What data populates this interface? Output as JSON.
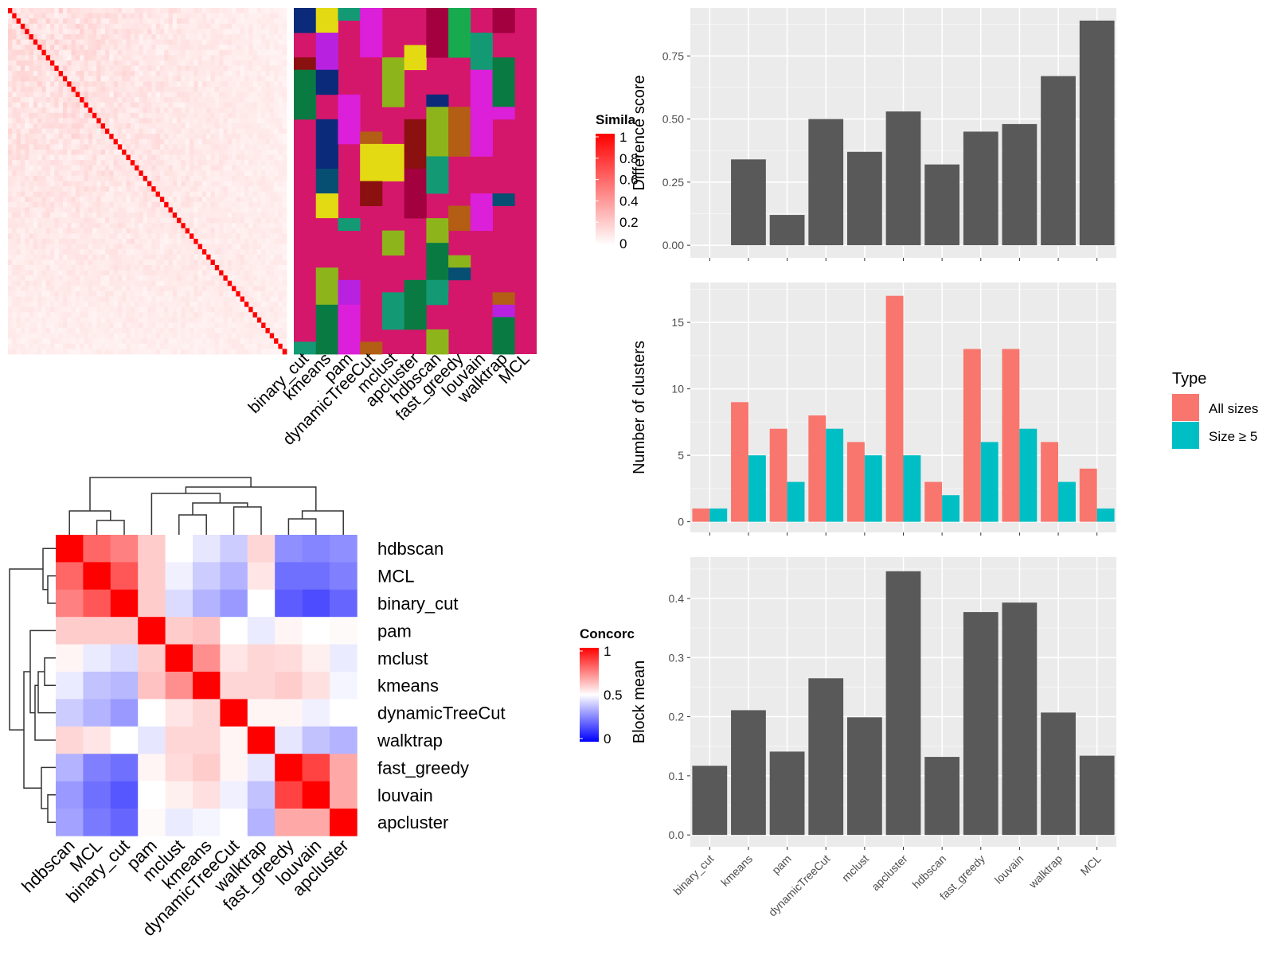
{
  "chart_data": [
    {
      "type": "heatmap",
      "legend_title": "Simila",
      "legend_ticks": [
        "1",
        "0.8",
        "0.6",
        "0.4",
        "0.2",
        "0"
      ],
      "col_labels": [
        "binary_cut",
        "kmeans",
        "pam",
        "dynamicTreeCut",
        "mclust",
        "apcluster",
        "hdbscan",
        "fast_greedy",
        "louvain",
        "walktrap",
        "MCL"
      ],
      "colors": {
        "low": "#ffffff",
        "high": "#ff0000",
        "cluster_default": "#d4176b"
      }
    },
    {
      "type": "heatmap",
      "legend_title": "Concorc",
      "legend_ticks": [
        "1",
        "0.5",
        "0"
      ],
      "colors": {
        "low": "#0000ff",
        "mid": "#ffffff",
        "high": "#ff0000"
      },
      "row_labels": [
        "hdbscan",
        "MCL",
        "binary_cut",
        "pam",
        "mclust",
        "kmeans",
        "dynamicTreeCut",
        "walktrap",
        "fast_greedy",
        "louvain",
        "apcluster"
      ],
      "col_labels": [
        "hdbscan",
        "MCL",
        "binary_cut",
        "pam",
        "mclust",
        "kmeans",
        "dynamicTreeCut",
        "walktrap",
        "fast_greedy",
        "louvain",
        "apcluster"
      ],
      "values": [
        [
          1.0,
          0.8,
          0.75,
          0.6,
          0.5,
          0.45,
          0.4,
          0.58,
          0.28,
          0.26,
          0.28
        ],
        [
          0.8,
          1.0,
          0.83,
          0.6,
          0.47,
          0.4,
          0.35,
          0.55,
          0.22,
          0.22,
          0.25
        ],
        [
          0.75,
          0.83,
          1.0,
          0.6,
          0.43,
          0.35,
          0.3,
          0.5,
          0.18,
          0.15,
          0.2
        ],
        [
          0.6,
          0.6,
          0.6,
          1.0,
          0.6,
          0.62,
          0.5,
          0.46,
          0.52,
          0.5,
          0.51
        ],
        [
          0.52,
          0.46,
          0.43,
          0.6,
          1.0,
          0.72,
          0.55,
          0.58,
          0.57,
          0.53,
          0.46
        ],
        [
          0.46,
          0.38,
          0.36,
          0.62,
          0.72,
          1.0,
          0.58,
          0.58,
          0.6,
          0.56,
          0.48
        ],
        [
          0.4,
          0.35,
          0.3,
          0.5,
          0.55,
          0.58,
          1.0,
          0.52,
          0.52,
          0.47,
          0.5
        ],
        [
          0.58,
          0.55,
          0.5,
          0.45,
          0.58,
          0.58,
          0.52,
          1.0,
          0.45,
          0.38,
          0.35
        ],
        [
          0.35,
          0.25,
          0.22,
          0.52,
          0.57,
          0.6,
          0.52,
          0.45,
          1.0,
          0.87,
          0.67
        ],
        [
          0.3,
          0.22,
          0.17,
          0.5,
          0.53,
          0.56,
          0.47,
          0.38,
          0.87,
          1.0,
          0.67
        ],
        [
          0.32,
          0.24,
          0.2,
          0.51,
          0.46,
          0.48,
          0.5,
          0.35,
          0.67,
          0.67,
          1.0
        ]
      ]
    },
    {
      "type": "bar",
      "categories": [
        "binary_cut",
        "kmeans",
        "pam",
        "dynamicTreeCut",
        "mclust",
        "apcluster",
        "hdbscan",
        "fast_greedy",
        "louvain",
        "walktrap",
        "MCL"
      ],
      "values": [
        0,
        0.34,
        0.12,
        0.5,
        0.37,
        0.53,
        0.32,
        0.45,
        0.48,
        0.67,
        0.89
      ],
      "ylabel": "Difference score",
      "ylim": [
        -0.05,
        0.94
      ],
      "yticks": [
        "0.00",
        "0.25",
        "0.50",
        "0.75"
      ],
      "colors": {
        "bar": "#595959",
        "panel": "#ebebeb"
      }
    },
    {
      "type": "bar",
      "categories": [
        "binary_cut",
        "kmeans",
        "pam",
        "dynamicTreeCut",
        "mclust",
        "apcluster",
        "hdbscan",
        "fast_greedy",
        "louvain",
        "walktrap",
        "MCL"
      ],
      "series": [
        {
          "name": "All sizes",
          "values": [
            1,
            9,
            7,
            8,
            6,
            17,
            3,
            13,
            13,
            6,
            4
          ],
          "color": "#f8766d"
        },
        {
          "name": "Size ≥ 5",
          "values": [
            1,
            5,
            3,
            7,
            5,
            5,
            2,
            6,
            7,
            3,
            1
          ],
          "color": "#00bfc4"
        }
      ],
      "ylabel": "Number of clusters",
      "ylim": [
        -0.8,
        18
      ],
      "yticks": [
        "0",
        "5",
        "10",
        "15"
      ],
      "legend_title": "Type",
      "legend_position": "right"
    },
    {
      "type": "bar",
      "categories": [
        "binary_cut",
        "kmeans",
        "pam",
        "dynamicTreeCut",
        "mclust",
        "apcluster",
        "hdbscan",
        "fast_greedy",
        "louvain",
        "walktrap",
        "MCL"
      ],
      "values": [
        0.117,
        0.211,
        0.141,
        0.265,
        0.199,
        0.446,
        0.132,
        0.377,
        0.393,
        0.207,
        0.134
      ],
      "ylabel": "Block mean",
      "ylim": [
        -0.02,
        0.47
      ],
      "yticks": [
        "0.0",
        "0.1",
        "0.2",
        "0.3",
        "0.4"
      ],
      "colors": {
        "bar": "#595959",
        "panel": "#ebebeb"
      }
    }
  ]
}
